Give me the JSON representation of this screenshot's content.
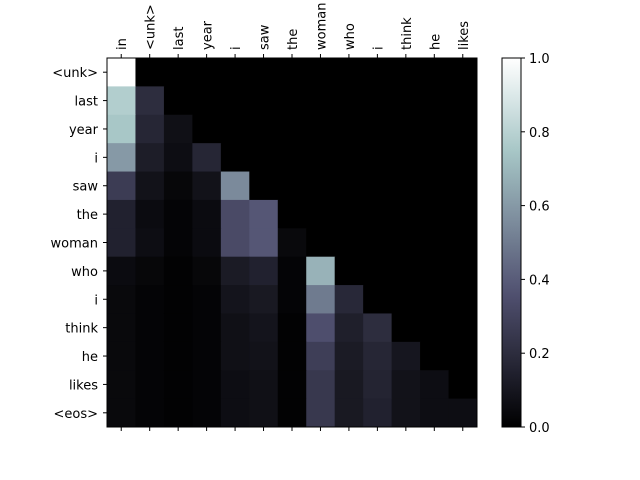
{
  "chart_data": {
    "type": "heatmap",
    "x_categories": [
      "in",
      "<unk>",
      "last",
      "year",
      "i",
      "saw",
      "the",
      "woman",
      "who",
      "i",
      "think",
      "he",
      "likes"
    ],
    "y_categories": [
      "<unk>",
      "last",
      "year",
      "i",
      "saw",
      "the",
      "woman",
      "who",
      "i",
      "think",
      "he",
      "likes",
      "<eos>"
    ],
    "values": [
      [
        1.0,
        0,
        0,
        0,
        0,
        0,
        0,
        0,
        0,
        0,
        0,
        0,
        0
      ],
      [
        0.78,
        0.2,
        0,
        0,
        0,
        0,
        0,
        0,
        0,
        0,
        0,
        0,
        0
      ],
      [
        0.75,
        0.17,
        0.07,
        0,
        0,
        0,
        0,
        0,
        0,
        0,
        0,
        0,
        0
      ],
      [
        0.6,
        0.13,
        0.06,
        0.17,
        0,
        0,
        0,
        0,
        0,
        0,
        0,
        0,
        0
      ],
      [
        0.27,
        0.08,
        0.03,
        0.08,
        0.55,
        0,
        0,
        0,
        0,
        0,
        0,
        0,
        0
      ],
      [
        0.15,
        0.05,
        0.02,
        0.05,
        0.33,
        0.38,
        0,
        0,
        0,
        0,
        0,
        0,
        0
      ],
      [
        0.15,
        0.06,
        0.02,
        0.05,
        0.33,
        0.38,
        0.04,
        0,
        0,
        0,
        0,
        0,
        0
      ],
      [
        0.05,
        0.03,
        0.01,
        0.03,
        0.12,
        0.15,
        0.02,
        0.68,
        0,
        0,
        0,
        0,
        0
      ],
      [
        0.04,
        0.02,
        0.01,
        0.02,
        0.09,
        0.11,
        0.02,
        0.5,
        0.18,
        0,
        0,
        0,
        0
      ],
      [
        0.04,
        0.02,
        0.01,
        0.02,
        0.07,
        0.09,
        0.01,
        0.35,
        0.14,
        0.2,
        0,
        0,
        0
      ],
      [
        0.04,
        0.02,
        0.01,
        0.02,
        0.07,
        0.08,
        0.01,
        0.28,
        0.12,
        0.17,
        0.1,
        0,
        0
      ],
      [
        0.04,
        0.02,
        0.01,
        0.02,
        0.06,
        0.07,
        0.01,
        0.25,
        0.11,
        0.16,
        0.08,
        0.06,
        0
      ],
      [
        0.04,
        0.02,
        0.01,
        0.02,
        0.06,
        0.07,
        0.01,
        0.25,
        0.11,
        0.15,
        0.08,
        0.06,
        0.06
      ]
    ],
    "colormap": "bone",
    "clim": [
      0,
      1
    ],
    "cticks": [
      {
        "value": 0,
        "label": "0.0"
      },
      0.2,
      0.4,
      0.6,
      0.8,
      {
        "value": 1,
        "label": "1.0"
      }
    ]
  }
}
